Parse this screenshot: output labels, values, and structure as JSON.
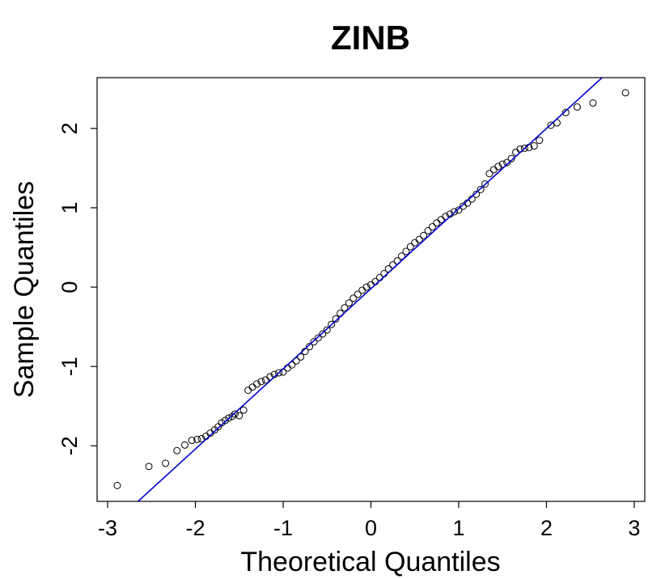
{
  "chart_data": {
    "type": "qqplot",
    "title": "ZINB",
    "x_label": "Theoretical Quantiles",
    "y_label": "Sample Quantiles",
    "xlim": [
      -3.12,
      3.12
    ],
    "ylim": [
      -2.7,
      2.64
    ],
    "xticks": [
      -3,
      -2,
      -1,
      0,
      1,
      2,
      3
    ],
    "yticks": [
      -2,
      -1,
      0,
      1,
      2
    ],
    "point_color": "#000000",
    "x": [
      -2.89,
      -2.53,
      -2.34,
      -2.21,
      -2.12,
      -2.04,
      -1.98,
      -1.93,
      -1.88,
      -1.83,
      -1.78,
      -1.74,
      -1.7,
      -1.66,
      -1.62,
      -1.58,
      -1.55,
      -1.5,
      -1.45,
      -1.4,
      -1.35,
      -1.3,
      -1.25,
      -1.2,
      -1.15,
      -1.1,
      -1.05,
      -1.0,
      -0.95,
      -0.9,
      -0.85,
      -0.8,
      -0.75,
      -0.7,
      -0.65,
      -0.6,
      -0.55,
      -0.5,
      -0.45,
      -0.4,
      -0.35,
      -0.3,
      -0.25,
      -0.2,
      -0.15,
      -0.1,
      -0.05,
      0,
      0.05,
      0.1,
      0.15,
      0.2,
      0.25,
      0.3,
      0.35,
      0.4,
      0.45,
      0.5,
      0.55,
      0.6,
      0.65,
      0.7,
      0.75,
      0.8,
      0.85,
      0.9,
      0.95,
      1.0,
      1.05,
      1.1,
      1.15,
      1.2,
      1.25,
      1.3,
      1.35,
      1.4,
      1.45,
      1.5,
      1.55,
      1.6,
      1.65,
      1.7,
      1.75,
      1.8,
      1.86,
      1.92,
      2.05,
      2.12,
      2.22,
      2.35,
      2.53,
      2.9
    ],
    "values": [
      -2.5,
      -2.26,
      -2.22,
      -2.06,
      -1.99,
      -1.93,
      -1.92,
      -1.91,
      -1.88,
      -1.84,
      -1.8,
      -1.76,
      -1.71,
      -1.68,
      -1.65,
      -1.63,
      -1.6,
      -1.62,
      -1.55,
      -1.3,
      -1.26,
      -1.22,
      -1.19,
      -1.17,
      -1.13,
      -1.1,
      -1.08,
      -1.07,
      -1.02,
      -0.98,
      -0.93,
      -0.88,
      -0.81,
      -0.75,
      -0.69,
      -0.64,
      -0.59,
      -0.54,
      -0.47,
      -0.4,
      -0.33,
      -0.26,
      -0.2,
      -0.14,
      -0.09,
      -0.04,
      0,
      0.03,
      0.07,
      0.12,
      0.17,
      0.23,
      0.28,
      0.33,
      0.39,
      0.45,
      0.51,
      0.56,
      0.6,
      0.65,
      0.71,
      0.76,
      0.81,
      0.85,
      0.89,
      0.92,
      0.95,
      0.97,
      1.02,
      1.06,
      1.11,
      1.17,
      1.23,
      1.3,
      1.43,
      1.48,
      1.52,
      1.55,
      1.57,
      1.62,
      1.7,
      1.74,
      1.75,
      1.76,
      1.78,
      1.85,
      2.04,
      2.07,
      2.2,
      2.27,
      2.32,
      2.45
    ],
    "qqline": {
      "intercept": -0.02,
      "slope": 1.01,
      "color": "#0000cc"
    }
  }
}
